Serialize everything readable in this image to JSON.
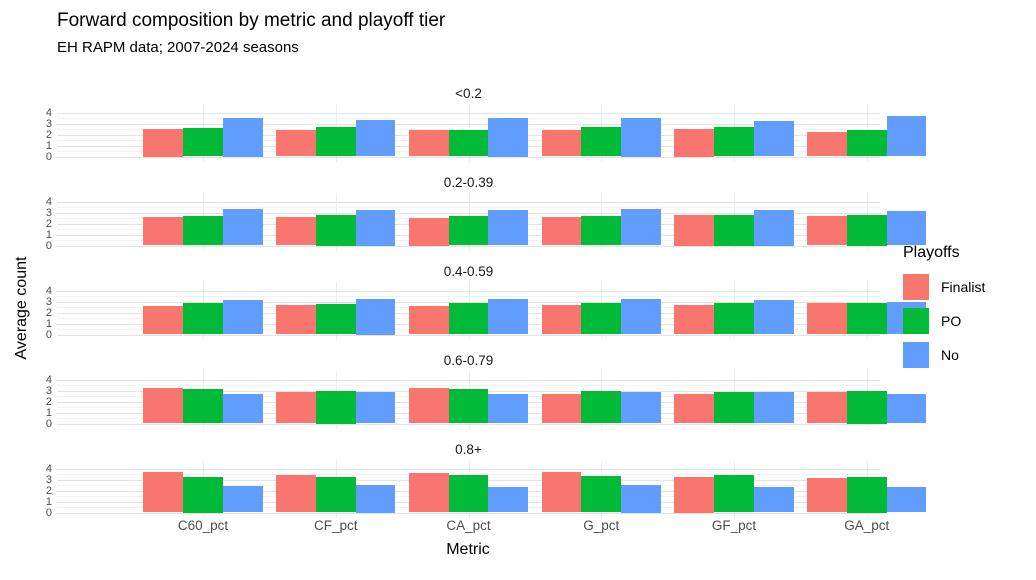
{
  "title": "Forward composition by metric and playoff tier",
  "subtitle": "EH RAPM data; 2007-2024 seasons",
  "chart_data": {
    "type": "bar",
    "title": "Forward composition by metric and playoff tier",
    "subtitle": "EH RAPM data; 2007-2024 seasons",
    "xlabel": "Metric",
    "ylabel": "Average count",
    "legend_title": "Playoffs",
    "legend_position": "right",
    "grid": true,
    "y_ticks": [
      0,
      1,
      2,
      3,
      4
    ],
    "ylim": [
      0,
      4.3
    ],
    "categories": [
      "C60_pct",
      "CF_pct",
      "CA_pct",
      "G_pct",
      "GF_pct",
      "GA_pct"
    ],
    "series_names": [
      "Finalist",
      "PO",
      "No"
    ],
    "series_colors": {
      "Finalist": "#F8766D",
      "PO": "#00BA38",
      "No": "#619CFF"
    },
    "facet_variable": "playoff tier",
    "facets": [
      {
        "label": "<0.2",
        "series": [
          {
            "name": "Finalist",
            "values": [
              2.5,
              2.4,
              2.4,
              2.45,
              2.5,
              2.2
            ]
          },
          {
            "name": "PO",
            "values": [
              2.6,
              2.7,
              2.45,
              2.65,
              2.65,
              2.4
            ]
          },
          {
            "name": "No",
            "values": [
              3.5,
              3.3,
              3.5,
              3.5,
              3.2,
              3.65
            ]
          }
        ]
      },
      {
        "label": "0.2-0.39",
        "series": [
          {
            "name": "Finalist",
            "values": [
              2.6,
              2.55,
              2.5,
              2.55,
              2.75,
              2.7
            ]
          },
          {
            "name": "PO",
            "values": [
              2.7,
              2.75,
              2.7,
              2.7,
              2.75,
              2.75
            ]
          },
          {
            "name": "No",
            "values": [
              3.3,
              3.25,
              3.2,
              3.3,
              3.25,
              3.1
            ]
          }
        ]
      },
      {
        "label": "0.4-0.59",
        "series": [
          {
            "name": "Finalist",
            "values": [
              2.55,
              2.7,
              2.55,
              2.7,
              2.7,
              2.9
            ]
          },
          {
            "name": "PO",
            "values": [
              2.85,
              2.8,
              2.9,
              2.85,
              2.85,
              2.85
            ]
          },
          {
            "name": "No",
            "values": [
              3.1,
              3.25,
              3.2,
              3.2,
              3.1,
              2.95
            ]
          }
        ]
      },
      {
        "label": "0.6-0.79",
        "series": [
          {
            "name": "Finalist",
            "values": [
              3.2,
              2.9,
              3.2,
              2.7,
              2.7,
              2.9
            ]
          },
          {
            "name": "PO",
            "values": [
              3.15,
              3.0,
              3.1,
              2.95,
              2.9,
              3.0
            ]
          },
          {
            "name": "No",
            "values": [
              2.7,
              2.85,
              2.7,
              2.85,
              2.85,
              2.7
            ]
          }
        ]
      },
      {
        "label": "0.8+",
        "series": [
          {
            "name": "Finalist",
            "values": [
              3.65,
              3.4,
              3.55,
              3.7,
              3.25,
              3.1
            ]
          },
          {
            "name": "PO",
            "values": [
              3.25,
              3.2,
              3.4,
              3.35,
              3.4,
              3.25
            ]
          },
          {
            "name": "No",
            "values": [
              2.45,
              2.5,
              2.35,
              2.5,
              2.3,
              2.35
            ]
          }
        ]
      }
    ]
  }
}
